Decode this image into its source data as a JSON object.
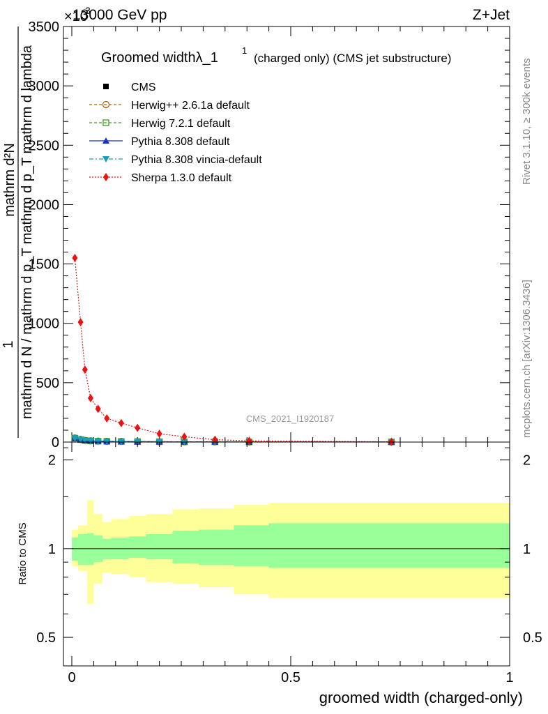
{
  "header": {
    "energy_label": "13000 GeV pp",
    "process_label": "Z+Jet",
    "exponent_label": "×10",
    "exponent_power": "3"
  },
  "side_labels": {
    "rivet": "Rivet 3.1.10, ≥ 300k events",
    "mcplots": "mcplots.cern.ch [arXiv:1306.3436]"
  },
  "chart_data": [
    {
      "type": "line",
      "title": "Groomed widthλ_1",
      "title_sup": "1",
      "title_suffix": "(charged only) (CMS jet substructure)",
      "watermark": "CMS_2021_I1920187",
      "ylabel_top": "1",
      "ylabel_num": "mathrm d²N",
      "ylabel_den": "mathrm d N / mathrm d p_T mathrm d p_T mathrm d lambda",
      "yscale_factor": 1000,
      "xlim": [
        0,
        1
      ],
      "ylim": [
        0,
        3500
      ],
      "yticks": [
        0,
        500,
        1000,
        1500,
        2000,
        2500,
        3000,
        3500
      ],
      "ytick_labels": [
        "0",
        "500",
        "1000",
        "1500",
        "2000",
        "2500",
        "3000",
        "3500"
      ],
      "legend": [
        {
          "name": "CMS",
          "color": "#000000",
          "marker": "square-filled",
          "dash": "none"
        },
        {
          "name": "Herwig++ 2.6.1a default",
          "color": "#b8600a",
          "marker": "circle-open",
          "dash": "dashed"
        },
        {
          "name": "Herwig 7.2.1 default",
          "color": "#3c9e1e",
          "marker": "square-open",
          "dash": "dashed"
        },
        {
          "name": "Pythia 8.308 default",
          "color": "#1f2fcc",
          "marker": "triangle-up",
          "dash": "solid"
        },
        {
          "name": "Pythia 8.308 vincia-default",
          "color": "#1a9fb5",
          "marker": "triangle-down",
          "dash": "dashdot"
        },
        {
          "name": "Sherpa 1.3.0 default",
          "color": "#ee1111",
          "marker": "diamond",
          "dash": "dotted"
        }
      ],
      "series": [
        {
          "name": "Sherpa 1.3.0 default",
          "x": [
            0.007,
            0.02,
            0.03,
            0.043,
            0.06,
            0.08,
            0.113,
            0.15,
            0.2,
            0.257,
            0.327,
            0.405,
            0.73
          ],
          "values": [
            1550,
            1010,
            610,
            370,
            280,
            200,
            160,
            120,
            70,
            45,
            20,
            10,
            2
          ]
        },
        {
          "name": "CMS",
          "x": [
            0.007,
            0.02,
            0.03,
            0.043,
            0.06,
            0.08,
            0.113,
            0.15,
            0.2,
            0.257,
            0.327,
            0.405,
            0.73
          ],
          "values": [
            35,
            22,
            15,
            10,
            8,
            6,
            5,
            4,
            3,
            2,
            2,
            1,
            1
          ]
        },
        {
          "name": "Herwig++ 2.6.1a default",
          "x": [
            0.007,
            0.02,
            0.03,
            0.043,
            0.06,
            0.08,
            0.113,
            0.15,
            0.2,
            0.257,
            0.327,
            0.405,
            0.73
          ],
          "values": [
            34,
            22,
            14,
            10,
            8,
            6,
            5,
            4,
            3,
            2,
            2,
            1,
            1
          ]
        },
        {
          "name": "Herwig 7.2.1 default",
          "x": [
            0.007,
            0.02,
            0.03,
            0.043,
            0.06,
            0.08,
            0.113,
            0.15,
            0.2,
            0.257,
            0.327,
            0.405,
            0.73
          ],
          "values": [
            33,
            21,
            14,
            10,
            7,
            6,
            5,
            4,
            3,
            2,
            2,
            1,
            1
          ]
        },
        {
          "name": "Pythia 8.308 default",
          "x": [
            0.007,
            0.02,
            0.03,
            0.043,
            0.06,
            0.08,
            0.113,
            0.15,
            0.2,
            0.257,
            0.327,
            0.405,
            0.73
          ],
          "values": [
            32,
            22,
            14,
            10,
            8,
            6,
            5,
            4,
            3,
            2,
            2,
            1,
            1
          ]
        },
        {
          "name": "Pythia 8.308 vincia-default",
          "x": [
            0.007,
            0.02,
            0.03,
            0.043,
            0.06,
            0.08,
            0.113,
            0.15,
            0.2,
            0.257,
            0.327,
            0.405,
            0.73
          ],
          "values": [
            33,
            21,
            15,
            10,
            8,
            6,
            5,
            4,
            3,
            2,
            2,
            1,
            1
          ]
        }
      ]
    },
    {
      "type": "area",
      "ylabel": "Ratio to CMS",
      "xlabel": "groomed width (charged-only)",
      "yscale": "log",
      "xlim": [
        0,
        1
      ],
      "ylim": [
        0.4,
        2.3
      ],
      "yticks": [
        0.5,
        1,
        2
      ],
      "ytick_labels": [
        "0.5",
        "1",
        "2"
      ],
      "xticks": [
        0,
        0.5,
        1
      ],
      "xtick_labels": [
        "0",
        "0.5",
        "1"
      ],
      "reference": 1,
      "bin_edges": [
        0,
        0.014,
        0.035,
        0.05,
        0.07,
        0.09,
        0.13,
        0.17,
        0.23,
        0.29,
        0.37,
        0.45,
        1.0
      ],
      "inner_band": {
        "color": "#99ff99",
        "low": [
          0.91,
          0.88,
          0.88,
          0.9,
          0.92,
          0.92,
          0.93,
          0.92,
          0.89,
          0.88,
          0.87,
          0.86
        ],
        "high": [
          1.09,
          1.12,
          1.13,
          1.11,
          1.08,
          1.09,
          1.1,
          1.12,
          1.15,
          1.16,
          1.2,
          1.22
        ]
      },
      "outer_band": {
        "color": "#ffff99",
        "low": [
          0.87,
          0.84,
          0.65,
          0.76,
          0.83,
          0.82,
          0.8,
          0.77,
          0.76,
          0.74,
          0.7,
          0.68
        ],
        "high": [
          1.16,
          1.2,
          1.46,
          1.31,
          1.23,
          1.26,
          1.29,
          1.31,
          1.36,
          1.37,
          1.41,
          1.43
        ]
      }
    }
  ]
}
